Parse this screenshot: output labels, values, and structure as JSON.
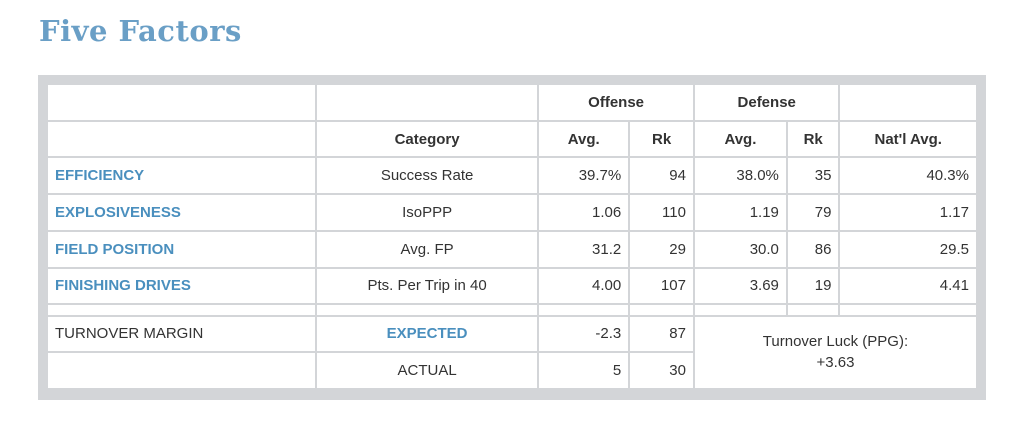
{
  "title": "Five Factors",
  "headers": {
    "offense": "Offense",
    "defense": "Defense",
    "category": "Category",
    "avg": "Avg.",
    "rk": "Rk",
    "natl_avg": "Nat'l Avg."
  },
  "rows": [
    {
      "factor": "EFFICIENCY",
      "category": "Success Rate",
      "off_avg": "39.7%",
      "off_rk": "94",
      "def_avg": "38.0%",
      "def_rk": "35",
      "natl": "40.3%"
    },
    {
      "factor": "EXPLOSIVENESS",
      "category": "IsoPPP",
      "off_avg": "1.06",
      "off_rk": "110",
      "def_avg": "1.19",
      "def_rk": "79",
      "natl": "1.17"
    },
    {
      "factor": "FIELD POSITION",
      "category": "Avg. FP",
      "off_avg": "31.2",
      "off_rk": "29",
      "def_avg": "30.0",
      "def_rk": "86",
      "natl": "29.5"
    },
    {
      "factor": "FINISHING DRIVES",
      "category": "Pts. Per Trip in 40",
      "off_avg": "4.00",
      "off_rk": "107",
      "def_avg": "3.69",
      "def_rk": "19",
      "natl": "4.41"
    }
  ],
  "turnover": {
    "label": "TURNOVER MARGIN",
    "expected_label": "EXPECTED",
    "expected_value": "-2.3",
    "expected_rank": "87",
    "actual_label": "ACTUAL",
    "actual_value": "5",
    "actual_rank": "30",
    "luck_label": "Turnover Luck (PPG):",
    "luck_value": "+3.63"
  },
  "colors": {
    "accent": "#4a8fbe",
    "title": "#6a9fc6",
    "frame": "#d3d5d8"
  }
}
